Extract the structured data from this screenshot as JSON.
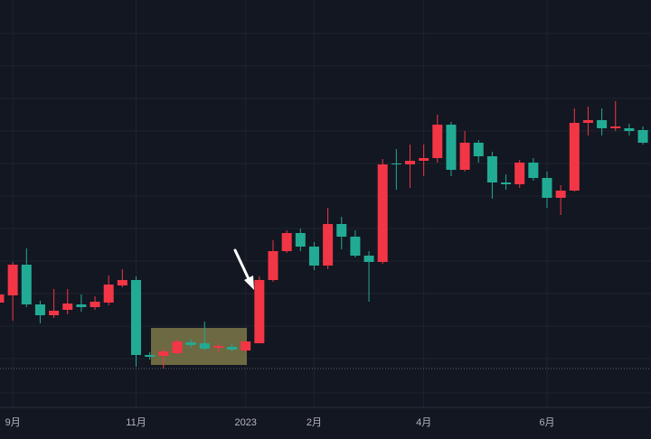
{
  "chart_data": {
    "type": "candlestick",
    "categories": [
      null,
      null,
      null,
      null,
      null,
      null,
      null,
      null,
      null,
      null,
      null,
      null,
      null,
      null,
      null,
      null,
      null,
      null,
      null,
      null,
      null,
      null,
      null,
      null,
      null,
      null,
      null,
      null,
      null,
      null,
      null,
      null,
      null,
      null,
      null,
      null,
      null,
      null,
      null,
      null,
      null,
      null,
      null,
      null,
      null,
      null,
      null,
      null
    ],
    "open": [
      115,
      123,
      157,
      113,
      101,
      107,
      113,
      110,
      115,
      134,
      140,
      57,
      56,
      59,
      71,
      70,
      65,
      66,
      62,
      70,
      140,
      172,
      192,
      177,
      156,
      202,
      188,
      167,
      160,
      269,
      268,
      272,
      275,
      312,
      262,
      292,
      277,
      248,
      246,
      270,
      253,
      231,
      239,
      314,
      317,
      308,
      308,
      306
    ],
    "high": [
      130,
      160,
      175,
      117,
      130,
      130,
      124,
      122,
      145,
      152,
      144,
      60,
      64,
      74,
      75,
      94,
      69,
      70,
      73,
      144,
      184,
      195,
      197,
      182,
      220,
      210,
      195,
      172,
      274,
      285,
      290,
      290,
      323,
      315,
      305,
      295,
      282,
      257,
      273,
      275,
      260,
      245,
      330,
      332,
      330,
      338,
      313,
      310
    ],
    "low": [
      105,
      95,
      110,
      92,
      98,
      102,
      105,
      107,
      112,
      132,
      44,
      52,
      42,
      58,
      65,
      62,
      60,
      61,
      60,
      70,
      138,
      170,
      172,
      151,
      152,
      174,
      165,
      116,
      158,
      240,
      242,
      255,
      270,
      255,
      260,
      270,
      230,
      240,
      242,
      250,
      220,
      212,
      238,
      300,
      300,
      305,
      300,
      290
    ],
    "close": [
      124,
      157,
      113,
      101,
      106,
      114,
      110,
      116,
      135,
      140,
      57,
      55,
      61,
      72,
      68,
      64,
      67,
      63,
      72,
      140,
      172,
      192,
      177,
      156,
      202,
      188,
      167,
      160,
      268,
      268,
      272,
      275,
      312,
      262,
      292,
      277,
      248,
      246,
      270,
      253,
      231,
      239,
      314,
      317,
      308,
      310,
      305,
      292
    ],
    "up_color": "#f23645",
    "down_color": "#22ab94",
    "ylim": [
      0,
      450
    ],
    "xticks": [
      {
        "value": 1,
        "label": "9月"
      },
      {
        "value": 10,
        "label": "11月"
      },
      {
        "value": 18,
        "label": "2023"
      },
      {
        "value": 23,
        "label": "2月"
      },
      {
        "value": 31,
        "label": "4月"
      },
      {
        "value": 40,
        "label": "6月"
      }
    ],
    "grid": true
  }
}
